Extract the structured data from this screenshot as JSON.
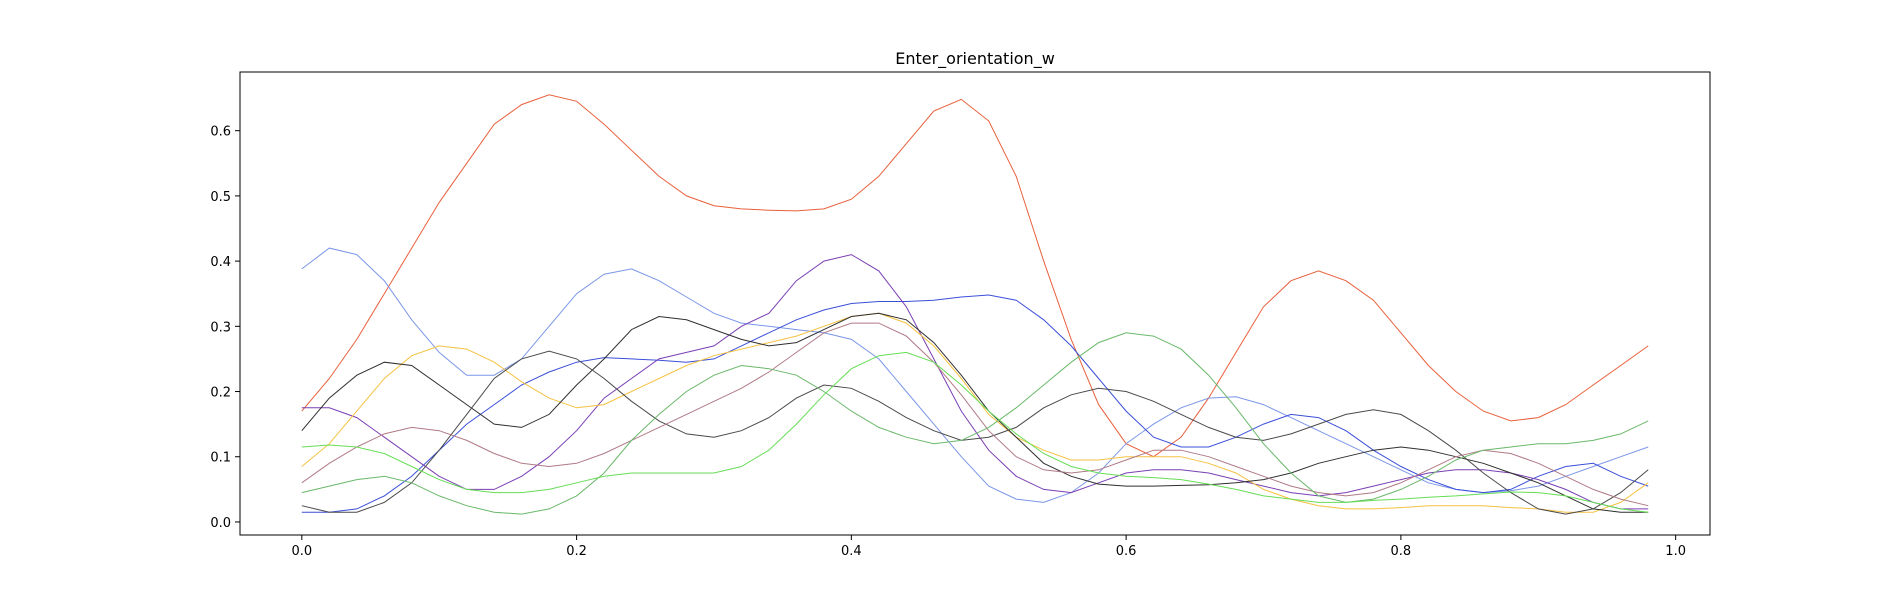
{
  "chart_data": {
    "type": "line",
    "title": "Enter_orientation_w",
    "xlabel": "",
    "ylabel": "",
    "xlim": [
      -0.045,
      1.025
    ],
    "ylim": [
      -0.02,
      0.69
    ],
    "xticks": [
      "0.0",
      "0.2",
      "0.4",
      "0.6",
      "0.8",
      "1.0"
    ],
    "yticks": [
      "0.0",
      "0.1",
      "0.2",
      "0.3",
      "0.4",
      "0.5",
      "0.6"
    ],
    "grid": false,
    "x": [
      0.0,
      0.02,
      0.04,
      0.06,
      0.08,
      0.1,
      0.12,
      0.14,
      0.16,
      0.18,
      0.2,
      0.22,
      0.24,
      0.26,
      0.28,
      0.3,
      0.32,
      0.34,
      0.36,
      0.38,
      0.4,
      0.42,
      0.44,
      0.46,
      0.48,
      0.5,
      0.52,
      0.54,
      0.56,
      0.58,
      0.6,
      0.62,
      0.64,
      0.66,
      0.68,
      0.7,
      0.72,
      0.74,
      0.76,
      0.78,
      0.8,
      0.82,
      0.84,
      0.86,
      0.88,
      0.9,
      0.92,
      0.94,
      0.96,
      0.98
    ],
    "series": [
      {
        "color": "#e8603c",
        "values": [
          0.17,
          0.22,
          0.28,
          0.35,
          0.42,
          0.49,
          0.55,
          0.61,
          0.64,
          0.655,
          0.645,
          0.61,
          0.57,
          0.53,
          0.5,
          0.485,
          0.48,
          0.478,
          0.477,
          0.48,
          0.495,
          0.53,
          0.58,
          0.63,
          0.648,
          0.615,
          0.53,
          0.4,
          0.28,
          0.18,
          0.12,
          0.1,
          0.13,
          0.19,
          0.26,
          0.33,
          0.37,
          0.385,
          0.37,
          0.34,
          0.29,
          0.24,
          0.2,
          0.17,
          0.155,
          0.16,
          0.18,
          0.21,
          0.24,
          0.27
        ]
      },
      {
        "color": "#7b96e8",
        "values": [
          0.388,
          0.42,
          0.41,
          0.37,
          0.31,
          0.26,
          0.225,
          0.225,
          0.25,
          0.3,
          0.35,
          0.38,
          0.388,
          0.37,
          0.345,
          0.32,
          0.305,
          0.3,
          0.295,
          0.29,
          0.28,
          0.25,
          0.2,
          0.15,
          0.1,
          0.055,
          0.035,
          0.03,
          0.045,
          0.075,
          0.12,
          0.15,
          0.175,
          0.19,
          0.192,
          0.18,
          0.16,
          0.14,
          0.12,
          0.1,
          0.08,
          0.06,
          0.05,
          0.045,
          0.048,
          0.055,
          0.07,
          0.085,
          0.1,
          0.115
        ]
      },
      {
        "color": "#3b4fd9",
        "values": [
          0.015,
          0.015,
          0.02,
          0.04,
          0.07,
          0.11,
          0.15,
          0.18,
          0.21,
          0.23,
          0.245,
          0.252,
          0.25,
          0.248,
          0.245,
          0.25,
          0.27,
          0.29,
          0.31,
          0.325,
          0.335,
          0.338,
          0.338,
          0.34,
          0.345,
          0.348,
          0.34,
          0.31,
          0.27,
          0.22,
          0.17,
          0.13,
          0.115,
          0.115,
          0.13,
          0.15,
          0.165,
          0.16,
          0.14,
          0.11,
          0.085,
          0.065,
          0.05,
          0.045,
          0.05,
          0.07,
          0.085,
          0.09,
          0.07,
          0.055
        ]
      },
      {
        "color": "#7a3fb5",
        "values": [
          0.175,
          0.175,
          0.16,
          0.13,
          0.1,
          0.07,
          0.05,
          0.05,
          0.07,
          0.1,
          0.14,
          0.19,
          0.22,
          0.25,
          0.26,
          0.27,
          0.3,
          0.32,
          0.37,
          0.4,
          0.41,
          0.385,
          0.33,
          0.25,
          0.17,
          0.11,
          0.07,
          0.05,
          0.045,
          0.06,
          0.075,
          0.08,
          0.08,
          0.075,
          0.065,
          0.055,
          0.045,
          0.04,
          0.045,
          0.055,
          0.065,
          0.075,
          0.08,
          0.08,
          0.075,
          0.065,
          0.05,
          0.03,
          0.02,
          0.02
        ]
      },
      {
        "color": "#f5c242",
        "values": [
          0.085,
          0.12,
          0.17,
          0.22,
          0.255,
          0.27,
          0.265,
          0.245,
          0.215,
          0.19,
          0.175,
          0.18,
          0.2,
          0.22,
          0.24,
          0.255,
          0.265,
          0.275,
          0.285,
          0.3,
          0.315,
          0.32,
          0.305,
          0.27,
          0.22,
          0.165,
          0.13,
          0.11,
          0.095,
          0.095,
          0.1,
          0.1,
          0.1,
          0.09,
          0.075,
          0.05,
          0.035,
          0.025,
          0.02,
          0.02,
          0.022,
          0.025,
          0.025,
          0.025,
          0.022,
          0.02,
          0.015,
          0.015,
          0.03,
          0.06
        ]
      },
      {
        "color": "#2f2f2f",
        "values": [
          0.14,
          0.19,
          0.225,
          0.245,
          0.24,
          0.21,
          0.18,
          0.15,
          0.145,
          0.165,
          0.21,
          0.25,
          0.295,
          0.315,
          0.31,
          0.295,
          0.28,
          0.27,
          0.275,
          0.295,
          0.315,
          0.32,
          0.31,
          0.275,
          0.225,
          0.17,
          0.13,
          0.09,
          0.07,
          0.058,
          0.055,
          0.055,
          0.056,
          0.057,
          0.06,
          0.065,
          0.075,
          0.09,
          0.1,
          0.11,
          0.115,
          0.11,
          0.1,
          0.09,
          0.075,
          0.06,
          0.04,
          0.02,
          0.015,
          0.015
        ]
      },
      {
        "color": "#4a4a4a",
        "values": [
          0.025,
          0.015,
          0.015,
          0.03,
          0.06,
          0.11,
          0.165,
          0.22,
          0.25,
          0.262,
          0.25,
          0.22,
          0.185,
          0.155,
          0.135,
          0.13,
          0.14,
          0.16,
          0.19,
          0.21,
          0.205,
          0.185,
          0.16,
          0.14,
          0.125,
          0.13,
          0.145,
          0.175,
          0.195,
          0.205,
          0.2,
          0.185,
          0.165,
          0.145,
          0.13,
          0.125,
          0.135,
          0.15,
          0.165,
          0.172,
          0.165,
          0.14,
          0.11,
          0.075,
          0.045,
          0.02,
          0.012,
          0.02,
          0.045,
          0.08
        ]
      },
      {
        "color": "#b07a86",
        "values": [
          0.06,
          0.09,
          0.115,
          0.135,
          0.145,
          0.14,
          0.125,
          0.105,
          0.09,
          0.085,
          0.09,
          0.105,
          0.125,
          0.145,
          0.165,
          0.185,
          0.205,
          0.23,
          0.26,
          0.29,
          0.305,
          0.305,
          0.285,
          0.245,
          0.195,
          0.14,
          0.1,
          0.08,
          0.075,
          0.08,
          0.095,
          0.11,
          0.11,
          0.1,
          0.085,
          0.07,
          0.055,
          0.045,
          0.04,
          0.045,
          0.06,
          0.08,
          0.1,
          0.11,
          0.105,
          0.09,
          0.07,
          0.05,
          0.035,
          0.025
        ]
      },
      {
        "color": "#6ab86a",
        "values": [
          0.045,
          0.055,
          0.065,
          0.07,
          0.06,
          0.04,
          0.025,
          0.015,
          0.012,
          0.02,
          0.04,
          0.075,
          0.125,
          0.165,
          0.2,
          0.225,
          0.24,
          0.235,
          0.225,
          0.2,
          0.17,
          0.145,
          0.13,
          0.12,
          0.125,
          0.145,
          0.175,
          0.21,
          0.245,
          0.275,
          0.29,
          0.285,
          0.265,
          0.225,
          0.175,
          0.12,
          0.075,
          0.04,
          0.03,
          0.035,
          0.05,
          0.07,
          0.095,
          0.11,
          0.115,
          0.12,
          0.12,
          0.125,
          0.135,
          0.155
        ]
      },
      {
        "color": "#66dd55",
        "values": [
          0.115,
          0.118,
          0.115,
          0.105,
          0.085,
          0.065,
          0.05,
          0.045,
          0.045,
          0.05,
          0.06,
          0.07,
          0.075,
          0.075,
          0.075,
          0.075,
          0.085,
          0.11,
          0.15,
          0.195,
          0.235,
          0.255,
          0.26,
          0.245,
          0.21,
          0.17,
          0.135,
          0.105,
          0.085,
          0.075,
          0.07,
          0.068,
          0.065,
          0.058,
          0.05,
          0.04,
          0.035,
          0.03,
          0.03,
          0.033,
          0.035,
          0.038,
          0.04,
          0.043,
          0.046,
          0.045,
          0.04,
          0.03,
          0.02,
          0.015
        ]
      }
    ]
  }
}
